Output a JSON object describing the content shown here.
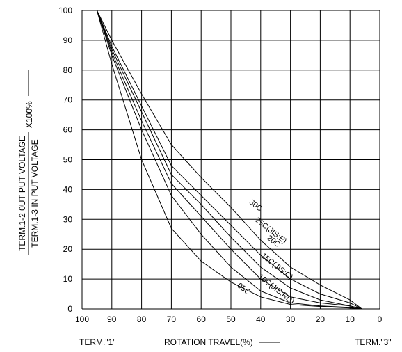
{
  "chart_data": {
    "type": "line",
    "x_axis": {
      "label": "ROTATION TRAVEL(%)",
      "reversed": true,
      "xlim": [
        0,
        100
      ],
      "ticks": [
        "100",
        "90",
        "80",
        "70",
        "60",
        "50",
        "40",
        "30",
        "20",
        "10",
        "0"
      ],
      "left_end_label": "TERM.\"1\"",
      "right_end_label": "TERM.\"3\""
    },
    "y_axis": {
      "label_numerator": "TERM.1-2 0UT PUT VOLTAGE",
      "label_denominator": "TERM.1-3 IN PUT VOLTAGE",
      "label_multiplier": "X100%",
      "ylim": [
        0,
        100
      ],
      "ticks": [
        "0",
        "10",
        "20",
        "30",
        "40",
        "50",
        "60",
        "70",
        "80",
        "90",
        "100"
      ]
    },
    "grid": true,
    "series": [
      {
        "name": "30C",
        "x": [
          95,
          90,
          80,
          70,
          60,
          50,
          40,
          30,
          20,
          10,
          6
        ],
        "y": [
          100,
          90,
          72,
          55,
          44,
          34,
          23,
          14,
          8,
          3,
          0
        ]
      },
      {
        "name": "25C(JIS:E)",
        "x": [
          95,
          90,
          80,
          70,
          60,
          50,
          40,
          30,
          20,
          10,
          6
        ],
        "y": [
          100,
          88,
          68,
          48,
          38,
          28,
          18,
          10,
          5,
          2,
          0
        ]
      },
      {
        "name": "20C",
        "x": [
          95,
          90,
          80,
          70,
          60,
          50,
          40,
          30,
          20,
          10,
          6
        ],
        "y": [
          100,
          87,
          66,
          45,
          35,
          24,
          14,
          7,
          3,
          1,
          0
        ]
      },
      {
        "name": "15C(JIS:C)",
        "x": [
          95,
          90,
          80,
          70,
          60,
          50,
          40,
          30,
          20,
          10,
          6
        ],
        "y": [
          100,
          86,
          63,
          42,
          31,
          20,
          10,
          4,
          2,
          1,
          0
        ]
      },
      {
        "name": "10C(JIS:RD)",
        "x": [
          95,
          90,
          80,
          70,
          60,
          50,
          40,
          30,
          20,
          10,
          6
        ],
        "y": [
          100,
          85,
          60,
          38,
          25,
          14,
          6,
          2,
          1,
          0.5,
          0
        ]
      },
      {
        "name": "05C",
        "x": [
          95,
          90,
          80,
          70,
          60,
          50,
          40,
          30,
          20,
          10,
          6
        ],
        "y": [
          100,
          82,
          50,
          27,
          16,
          9,
          4,
          1.5,
          0.8,
          0.3,
          0
        ]
      }
    ]
  }
}
